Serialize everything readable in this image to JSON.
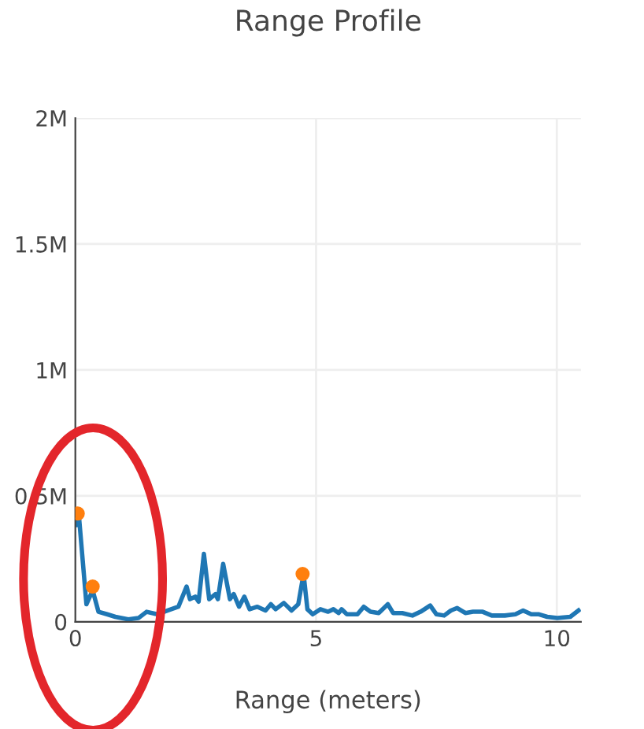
{
  "chart_data": {
    "type": "line",
    "title": "Range Profile",
    "xlabel": "Range (meters)",
    "xlim": [
      0,
      10.5
    ],
    "xticks": [
      0,
      5,
      10
    ],
    "ylim": [
      0,
      2000000
    ],
    "yticks": [
      0,
      {
        "value": 500000,
        "label": "0.5M"
      },
      {
        "value": 1000000,
        "label": "1M"
      },
      {
        "value": 1500000,
        "label": "1.5M"
      },
      {
        "value": 2000000,
        "label": "2M"
      }
    ],
    "grid": true,
    "legend": false,
    "series": [
      {
        "color": "#1f77b4",
        "marker": "none",
        "x": [
          0.01,
          0.07,
          0.23,
          0.36,
          0.48,
          0.66,
          0.83,
          1.1,
          1.31,
          1.48,
          1.7,
          1.92,
          2.14,
          2.31,
          2.38,
          2.49,
          2.56,
          2.67,
          2.78,
          2.91,
          2.96,
          3.07,
          3.21,
          3.29,
          3.4,
          3.51,
          3.62,
          3.78,
          3.95,
          4.06,
          4.16,
          4.33,
          4.49,
          4.63,
          4.74,
          4.82,
          4.93,
          5.09,
          5.25,
          5.36,
          5.47,
          5.53,
          5.64,
          5.86,
          5.99,
          6.13,
          6.3,
          6.49,
          6.6,
          6.79,
          7.0,
          7.17,
          7.37,
          7.5,
          7.66,
          7.8,
          7.93,
          8.1,
          8.26,
          8.46,
          8.65,
          8.92,
          9.14,
          9.3,
          9.47,
          9.63,
          9.8,
          10.01,
          10.28,
          10.45
        ],
        "values": [
          385000,
          430000,
          70000,
          125000,
          40000,
          30000,
          20000,
          10000,
          15000,
          40000,
          30000,
          45000,
          60000,
          140000,
          90000,
          100000,
          80000,
          270000,
          90000,
          110000,
          90000,
          230000,
          90000,
          110000,
          60000,
          100000,
          50000,
          60000,
          45000,
          70000,
          50000,
          75000,
          45000,
          70000,
          190000,
          50000,
          30000,
          50000,
          40000,
          50000,
          35000,
          50000,
          30000,
          30000,
          60000,
          40000,
          35000,
          70000,
          35000,
          35000,
          25000,
          40000,
          65000,
          30000,
          25000,
          45000,
          55000,
          35000,
          40000,
          40000,
          25000,
          25000,
          30000,
          45000,
          30000,
          30000,
          20000,
          15000,
          20000,
          45000
        ]
      },
      {
        "type": "scatter",
        "color": "#ff7f0e",
        "marker": "circle",
        "x": [
          0.05,
          0.36,
          4.72
        ],
        "values": [
          430000,
          140000,
          190000
        ]
      }
    ]
  }
}
